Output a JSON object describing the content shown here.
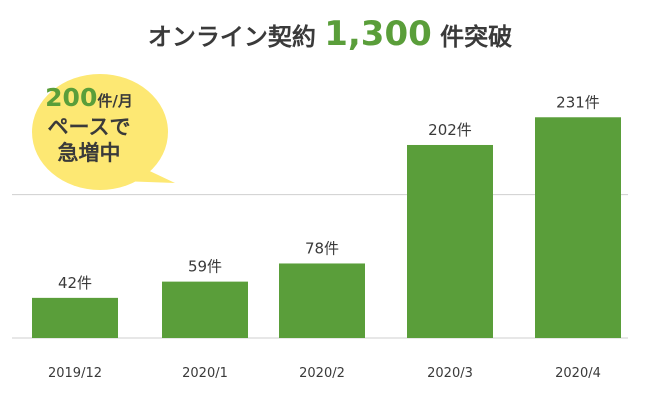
{
  "title": {
    "prefix": "オンライン契約",
    "count": "1,300",
    "suffix": "件突破"
  },
  "callout": {
    "rate": "200",
    "rate_unit": "件",
    "per": "/月",
    "line2": "ペースで",
    "line3": "急増中"
  },
  "chart_data": {
    "type": "bar",
    "categories": [
      "2019/12",
      "2020/1",
      "2020/2",
      "2020/3",
      "2020/4"
    ],
    "values": [
      42,
      59,
      78,
      202,
      231
    ],
    "data_labels": [
      "42件",
      "59件",
      "78件",
      "202件",
      "231件"
    ],
    "ylim": [
      0,
      270
    ],
    "reference_line": 150,
    "bar_color": "#5a9e3a"
  },
  "colors": {
    "accent": "#5a9e3a",
    "bubble": "#fde873",
    "text": "#3a3a3a"
  }
}
